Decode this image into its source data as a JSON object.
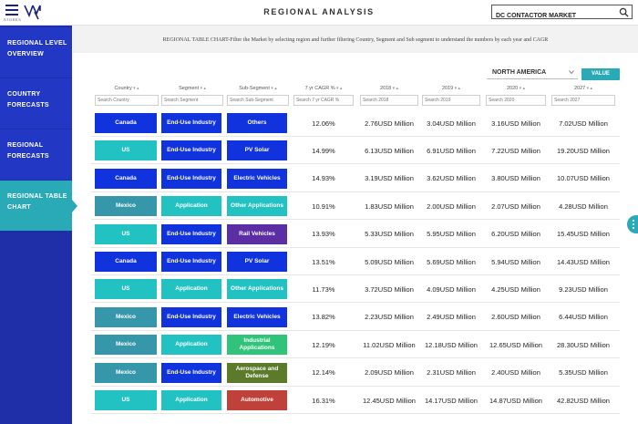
{
  "header": {
    "title": "REGIONAL ANALYSIS",
    "logo_text": "STORES",
    "search_value": "DC CONTACTOR MARKET"
  },
  "sidebar": {
    "items": [
      {
        "label": "REGIONAL LEVEL OVERVIEW",
        "active": false
      },
      {
        "label": "COUNTRY FORECASTS",
        "active": false
      },
      {
        "label": "REGIONAL FORECASTS",
        "active": false
      },
      {
        "label": "REGIONAL TABLE CHART",
        "active": true
      }
    ]
  },
  "main": {
    "description": "REGIONAL TABLE CHART-Filter the Market by selecting region and further filtering Country, Segment and Sub segment to understand the numbers by each year and CAGR",
    "region": "NORTH AMERICA",
    "value_button": "VALUE",
    "columns": [
      {
        "label": "Country",
        "placeholder": "Search Country"
      },
      {
        "label": "Segment",
        "placeholder": "Search Segment"
      },
      {
        "label": "Sub-Segment",
        "placeholder": "Search Sub-Segment"
      },
      {
        "label": "7 yr CAGR %",
        "placeholder": "Search 7 yr CAGR %"
      },
      {
        "label": "2018",
        "placeholder": "Search 2018"
      },
      {
        "label": "2019",
        "placeholder": "Search 2019"
      },
      {
        "label": "2020",
        "placeholder": "Search 2020"
      },
      {
        "label": "2027",
        "placeholder": "Search 2027"
      }
    ],
    "rows": [
      {
        "country": "Canada",
        "segment": "End-Use Industry",
        "sub": "Others",
        "cagr": "12.06%",
        "y2018": "2.76USD Million",
        "y2019": "3.04USD Million",
        "y2020": "3.16USD Million",
        "y2027": "7.02USD Million"
      },
      {
        "country": "US",
        "segment": "End-Use Industry",
        "sub": "PV Solar",
        "cagr": "14.99%",
        "y2018": "6.13USD Million",
        "y2019": "6.91USD Million",
        "y2020": "7.22USD Million",
        "y2027": "19.20USD Million"
      },
      {
        "country": "Canada",
        "segment": "End-Use Industry",
        "sub": "Electric Vehicles",
        "cagr": "14.93%",
        "y2018": "3.19USD Million",
        "y2019": "3.62USD Million",
        "y2020": "3.80USD Million",
        "y2027": "10.07USD Million"
      },
      {
        "country": "Mexico",
        "segment": "Application",
        "sub": "Other Applications",
        "cagr": "10.91%",
        "y2018": "1.83USD Million",
        "y2019": "2.00USD Million",
        "y2020": "2.07USD Million",
        "y2027": "4.28USD Million"
      },
      {
        "country": "US",
        "segment": "End-Use Industry",
        "sub": "Rail Vehicles",
        "cagr": "13.93%",
        "y2018": "5.33USD Million",
        "y2019": "5.95USD Million",
        "y2020": "6.20USD Million",
        "y2027": "15.45USD Million"
      },
      {
        "country": "Canada",
        "segment": "End-Use Industry",
        "sub": "PV Solar",
        "cagr": "13.51%",
        "y2018": "5.09USD Million",
        "y2019": "5.69USD Million",
        "y2020": "5.94USD Million",
        "y2027": "14.43USD Million"
      },
      {
        "country": "US",
        "segment": "Application",
        "sub": "Other Applications",
        "cagr": "11.73%",
        "y2018": "3.72USD Million",
        "y2019": "4.09USD Million",
        "y2020": "4.25USD Million",
        "y2027": "9.23USD Million"
      },
      {
        "country": "Mexico",
        "segment": "End-Use Industry",
        "sub": "Electric Vehicles",
        "cagr": "13.82%",
        "y2018": "2.23USD Million",
        "y2019": "2.49USD Million",
        "y2020": "2.60USD Million",
        "y2027": "6.44USD Million"
      },
      {
        "country": "Mexico",
        "segment": "Application",
        "sub": "Industrial Applications",
        "cagr": "12.19%",
        "y2018": "11.02USD Million",
        "y2019": "12.18USD Million",
        "y2020": "12.65USD Million",
        "y2027": "28.30USD Million"
      },
      {
        "country": "Mexico",
        "segment": "End-Use Industry",
        "sub": "Aerospace and Defense",
        "cagr": "12.14%",
        "y2018": "2.09USD Million",
        "y2019": "2.31USD Million",
        "y2020": "2.40USD Million",
        "y2027": "5.35USD Million"
      },
      {
        "country": "US",
        "segment": "Application",
        "sub": "Automotive",
        "cagr": "16.31%",
        "y2018": "12.45USD Million",
        "y2019": "14.17USD Million",
        "y2020": "14.87USD Million",
        "y2027": "42.82USD Million"
      }
    ]
  },
  "colors": {
    "sidebar": "#1f2fa8",
    "sidebar_item": "#2238c4",
    "accent": "#2aaab7",
    "chip_blue": "#1133dd",
    "chip_teal": "#22c2c2",
    "chip_steel": "#3597a9",
    "chip_purple": "#5b2ea3",
    "chip_green": "#2fc47a",
    "chip_olive": "#5b7a2a",
    "chip_red": "#c0403a"
  }
}
